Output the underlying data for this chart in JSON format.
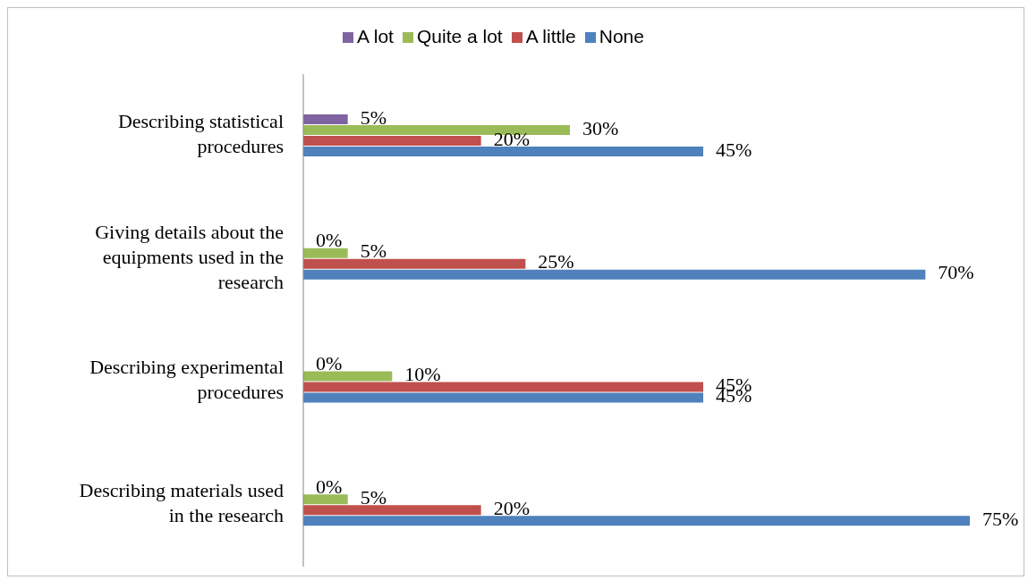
{
  "chart_data": {
    "type": "bar",
    "orientation": "horizontal",
    "categories": [
      "Describing statistical procedures",
      "Giving details about the equipments used in the research",
      "Describing experimental procedures",
      "Describing materials used in the research"
    ],
    "series": [
      {
        "name": "A lot",
        "color": "#8064a2",
        "values": [
          5,
          0,
          0,
          0
        ],
        "value_labels": [
          "5%",
          "0%",
          "0%",
          "0%"
        ]
      },
      {
        "name": "Quite a lot",
        "color": "#9bbb59",
        "values": [
          30,
          5,
          10,
          5
        ],
        "value_labels": [
          "30%",
          "5%",
          "10%",
          "5%"
        ]
      },
      {
        "name": "A little",
        "color": "#c0504d",
        "values": [
          20,
          25,
          45,
          20
        ],
        "value_labels": [
          "20%",
          "25%",
          "45%",
          "20%"
        ]
      },
      {
        "name": "None",
        "color": "#4f81bd",
        "values": [
          45,
          70,
          45,
          75
        ],
        "value_labels": [
          "45%",
          "70%",
          "45%",
          "75%"
        ]
      }
    ],
    "legend": "top"
  }
}
